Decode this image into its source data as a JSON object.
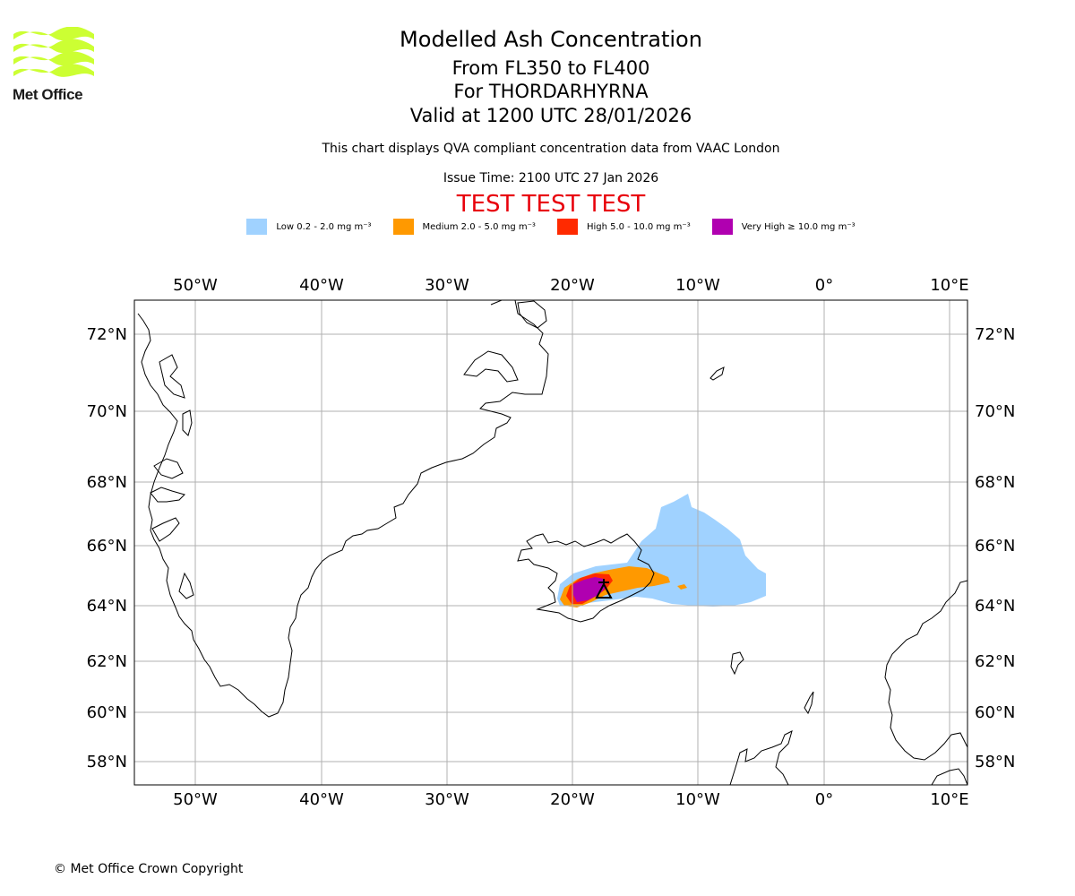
{
  "logo": {
    "text": "Met Office",
    "color": "#ccff33"
  },
  "header": {
    "title": "Modelled Ash Concentration",
    "levels": "From FL350 to FL400",
    "volcano": "For THORDARHYRNA",
    "valid": "Valid at 1200 UTC 28/01/2026",
    "description": "This chart displays QVA compliant concentration data from VAAC London",
    "issue_time": "Issue Time: 2100 UTC 27 Jan 2026",
    "test_banner": "TEST TEST TEST"
  },
  "legend": [
    {
      "label": "Low 0.2 - 2.0 mg m⁻³",
      "color": "#a0d2ff"
    },
    {
      "label": "Medium 2.0 - 5.0 mg m⁻³",
      "color": "#ff9900"
    },
    {
      "label": "High 5.0 - 10.0 mg m⁻³",
      "color": "#ff2a00"
    },
    {
      "label": "Very High  ≥  10.0 mg m⁻³",
      "color": "#b000b0"
    }
  ],
  "map": {
    "lon_labels": [
      "50°W",
      "40°W",
      "30°W",
      "20°W",
      "10°W",
      "0°",
      "10°E"
    ],
    "lon_values": [
      -50,
      -40,
      -30,
      -20,
      -10,
      0,
      10
    ],
    "lat_labels": [
      "72°N",
      "70°N",
      "68°N",
      "66°N",
      "64°N",
      "62°N",
      "60°N",
      "58°N"
    ],
    "lat_values": [
      72,
      70,
      68,
      66,
      64,
      62,
      60,
      58
    ],
    "lon_range": [
      -55,
      11.2
    ],
    "volcano_location": {
      "lon": -17.9,
      "lat": 64.4
    }
  },
  "footer": {
    "copyright": "© Met Office Crown Copyright"
  }
}
